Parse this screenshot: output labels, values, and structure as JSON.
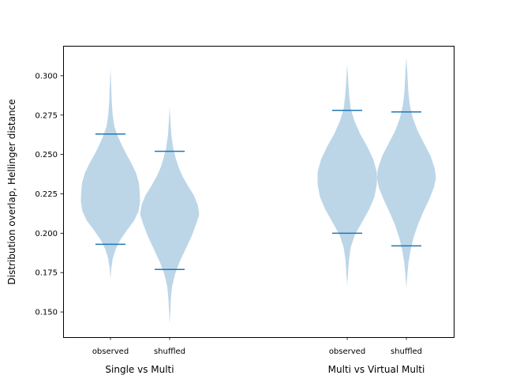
{
  "chart_data": {
    "type": "violin",
    "ylabel": "Distribution overlap, Hellinger distance",
    "ylim": [
      0.134,
      0.319
    ],
    "yticks": [
      0.15,
      0.175,
      0.2,
      0.225,
      0.25,
      0.275,
      0.3
    ],
    "ytick_labels": [
      "0.150",
      "0.175",
      "0.200",
      "0.225",
      "0.250",
      "0.275",
      "0.300"
    ],
    "grid": false,
    "violin_color": "#bcd6e8",
    "whisker_color": "#1f77b4",
    "groups": [
      {
        "label": "Single vs Multi",
        "violins": [
          {
            "name": "observed",
            "min": 0.171,
            "max": 0.305,
            "low": 0.193,
            "high": 0.263,
            "profile": [
              [
                0.171,
                0.0
              ],
              [
                0.178,
                0.03
              ],
              [
                0.184,
                0.08
              ],
              [
                0.19,
                0.18
              ],
              [
                0.196,
                0.34
              ],
              [
                0.202,
                0.56
              ],
              [
                0.208,
                0.8
              ],
              [
                0.214,
                0.95
              ],
              [
                0.22,
                1.0
              ],
              [
                0.226,
                0.99
              ],
              [
                0.232,
                0.96
              ],
              [
                0.238,
                0.87
              ],
              [
                0.244,
                0.72
              ],
              [
                0.25,
                0.54
              ],
              [
                0.256,
                0.38
              ],
              [
                0.262,
                0.24
              ],
              [
                0.268,
                0.13
              ],
              [
                0.276,
                0.07
              ],
              [
                0.285,
                0.04
              ],
              [
                0.295,
                0.02
              ],
              [
                0.305,
                0.0
              ]
            ]
          },
          {
            "name": "shuffled",
            "min": 0.142,
            "max": 0.28,
            "low": 0.177,
            "high": 0.252,
            "profile": [
              [
                0.142,
                0.0
              ],
              [
                0.15,
                0.02
              ],
              [
                0.158,
                0.04
              ],
              [
                0.166,
                0.08
              ],
              [
                0.174,
                0.18
              ],
              [
                0.182,
                0.34
              ],
              [
                0.19,
                0.54
              ],
              [
                0.198,
                0.74
              ],
              [
                0.206,
                0.9
              ],
              [
                0.212,
                1.0
              ],
              [
                0.218,
                0.95
              ],
              [
                0.224,
                0.82
              ],
              [
                0.23,
                0.62
              ],
              [
                0.236,
                0.44
              ],
              [
                0.242,
                0.3
              ],
              [
                0.248,
                0.2
              ],
              [
                0.254,
                0.12
              ],
              [
                0.262,
                0.06
              ],
              [
                0.27,
                0.03
              ],
              [
                0.28,
                0.0
              ]
            ]
          }
        ]
      },
      {
        "label": "Multi vs Virtual Multi",
        "violins": [
          {
            "name": "observed",
            "min": 0.167,
            "max": 0.307,
            "low": 0.2,
            "high": 0.278,
            "profile": [
              [
                0.167,
                0.0
              ],
              [
                0.175,
                0.03
              ],
              [
                0.183,
                0.06
              ],
              [
                0.191,
                0.12
              ],
              [
                0.199,
                0.26
              ],
              [
                0.207,
                0.5
              ],
              [
                0.215,
                0.74
              ],
              [
                0.223,
                0.92
              ],
              [
                0.231,
                1.0
              ],
              [
                0.239,
                1.0
              ],
              [
                0.247,
                0.88
              ],
              [
                0.255,
                0.68
              ],
              [
                0.263,
                0.44
              ],
              [
                0.271,
                0.25
              ],
              [
                0.279,
                0.12
              ],
              [
                0.287,
                0.07
              ],
              [
                0.295,
                0.04
              ],
              [
                0.307,
                0.0
              ]
            ]
          },
          {
            "name": "shuffled",
            "min": 0.165,
            "max": 0.312,
            "low": 0.192,
            "high": 0.277,
            "profile": [
              [
                0.165,
                0.0
              ],
              [
                0.173,
                0.03
              ],
              [
                0.181,
                0.07
              ],
              [
                0.189,
                0.14
              ],
              [
                0.197,
                0.24
              ],
              [
                0.205,
                0.38
              ],
              [
                0.213,
                0.56
              ],
              [
                0.221,
                0.76
              ],
              [
                0.229,
                0.93
              ],
              [
                0.235,
                1.0
              ],
              [
                0.241,
                0.96
              ],
              [
                0.249,
                0.82
              ],
              [
                0.257,
                0.6
              ],
              [
                0.265,
                0.38
              ],
              [
                0.273,
                0.22
              ],
              [
                0.281,
                0.12
              ],
              [
                0.289,
                0.07
              ],
              [
                0.299,
                0.04
              ],
              [
                0.312,
                0.0
              ]
            ]
          }
        ]
      }
    ]
  }
}
